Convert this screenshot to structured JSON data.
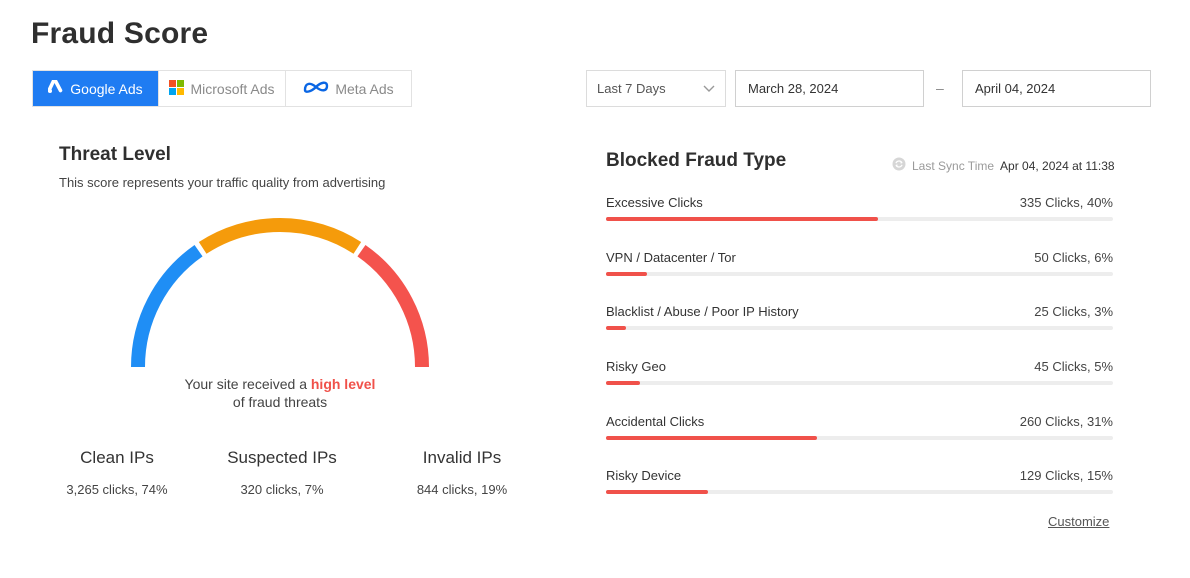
{
  "page": {
    "title": "Fraud Score"
  },
  "platform_tabs": [
    {
      "label": "Google Ads",
      "icon": "google-ads-icon",
      "active": true
    },
    {
      "label": "Microsoft Ads",
      "icon": "microsoft-icon",
      "active": false
    },
    {
      "label": "Meta Ads",
      "icon": "meta-icon",
      "active": false
    }
  ],
  "date_filter": {
    "range": "Last 7 Days",
    "start": "March 28, 2024",
    "separator": "–",
    "end": "April 04, 2024"
  },
  "threat": {
    "title": "Threat Level",
    "subtitle": "This score represents your traffic quality from advertising",
    "message_pre": "Your site received a",
    "message_highlight": "high level",
    "message_post": "of fraud threats",
    "gauge_colors": [
      "#1f8ef5",
      "#f59b0b",
      "#f4534d"
    ]
  },
  "stats": [
    {
      "title": "Clean IPs",
      "value": "3,265 clicks, 74%"
    },
    {
      "title": "Suspected IPs",
      "value": "320 clicks, 7%"
    },
    {
      "title": "Invalid IPs",
      "value": "844 clicks, 19%"
    }
  ],
  "blocked": {
    "title": "Blocked Fraud Type",
    "sync_label": "Last Sync Time",
    "sync_value": "Apr 04, 2024 at 11:38",
    "items": [
      {
        "label": "Excessive Clicks",
        "value": "335 Clicks, 40%",
        "percent": 40
      },
      {
        "label": "VPN / Datacenter / Tor",
        "value": "50 Clicks, 6%",
        "percent": 6
      },
      {
        "label": "Blacklist / Abuse / Poor IP History",
        "value": "25 Clicks, 3%",
        "percent": 3
      },
      {
        "label": "Risky Geo",
        "value": "45 Clicks, 5%",
        "percent": 5
      },
      {
        "label": "Accidental Clicks",
        "value": "260 Clicks, 31%",
        "percent": 31
      },
      {
        "label": "Risky Device",
        "value": "129 Clicks, 15%",
        "percent": 15
      }
    ],
    "customize_label": "Customize",
    "accent_color": "#f0514a"
  }
}
